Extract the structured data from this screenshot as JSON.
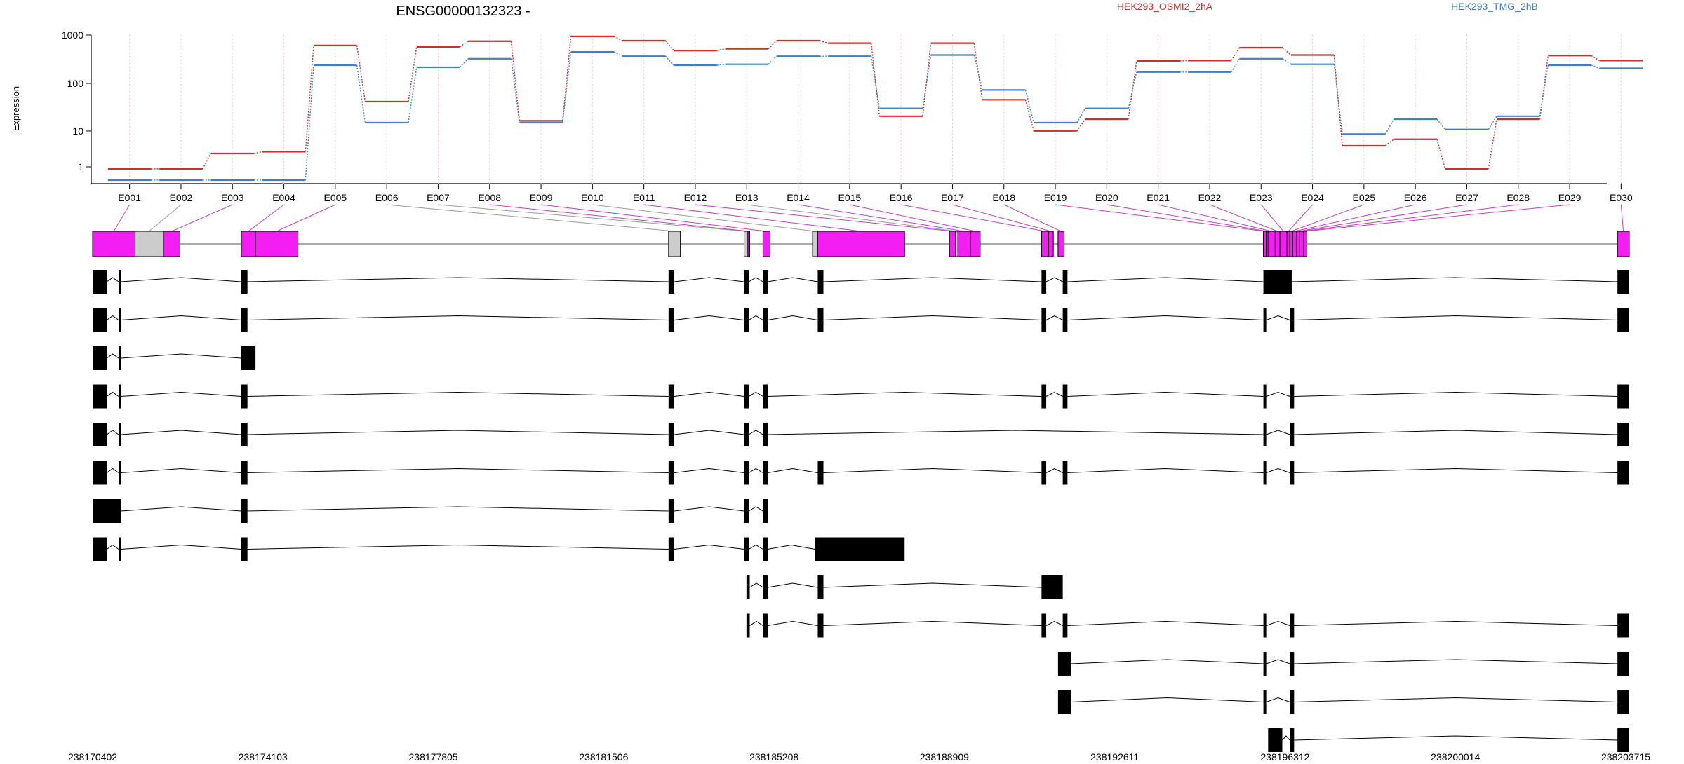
{
  "chart_data": {
    "type": "line",
    "title": "ENSG00000132323 -",
    "ylabel": "Expression",
    "xlabel": "",
    "yscale": "log",
    "ylim": [
      0.5,
      1000
    ],
    "yticks": [
      "1",
      "10",
      "100",
      "1000"
    ],
    "grid": "vertical dotted lines at each exon bin",
    "legend_placement": "top-right",
    "categories": [
      "E001",
      "E002",
      "E003",
      "E004",
      "E005",
      "E006",
      "E007",
      "E008",
      "E009",
      "E010",
      "E011",
      "E012",
      "E013",
      "E014",
      "E015",
      "E016",
      "E017",
      "E018",
      "E019",
      "E020",
      "E021",
      "E022",
      "E023",
      "E024",
      "E025",
      "E026",
      "E027",
      "E028",
      "E029",
      "E030"
    ],
    "series": [
      {
        "name": "HEK293_OSMI2_2hA",
        "color": "#d42a2a",
        "values": [
          0.9,
          0.9,
          2,
          2.2,
          560,
          30,
          520,
          700,
          11,
          900,
          720,
          430,
          470,
          720,
          630,
          14,
          630,
          33,
          6.5,
          12,
          250,
          255,
          500,
          340,
          3,
          4.2,
          0.9,
          12,
          330,
          255
        ]
      },
      {
        "name": "HEK293_TMG_2hB",
        "color": "#3c7fc4",
        "values": [
          0.5,
          0.5,
          0.5,
          0.5,
          200,
          10,
          180,
          280,
          10,
          400,
          320,
          200,
          210,
          320,
          320,
          21,
          340,
          55,
          10,
          21,
          140,
          140,
          280,
          210,
          5.5,
          12,
          7,
          14,
          200,
          170
        ]
      }
    ],
    "genomic_ticks": [
      "238170402",
      "238174103",
      "238177805",
      "238181506",
      "238185208",
      "238188909",
      "238192611",
      "238196312",
      "238200014",
      "238203715"
    ],
    "exon_color": "#f21ef2",
    "exon_nonsig_color": "#cccccc",
    "gene_model": {
      "exons": [
        {
          "id": "E001",
          "start": 0,
          "end": 0.9,
          "sig": true
        },
        {
          "id": "E002",
          "start": 0.9,
          "end": 1.5,
          "sig": false
        },
        {
          "id": "E003",
          "start": 1.5,
          "end": 1.85,
          "sig": true
        },
        {
          "id": "E004",
          "start": 3.15,
          "end": 3.45,
          "sig": true
        },
        {
          "id": "E005",
          "start": 3.45,
          "end": 4.35,
          "sig": true
        },
        {
          "id": "E006",
          "start": 12.2,
          "end": 12.45,
          "sig": false
        },
        {
          "id": "E007",
          "start": 13.8,
          "end": 13.88,
          "sig": false
        },
        {
          "id": "E008",
          "start": 13.88,
          "end": 13.92,
          "sig": true
        },
        {
          "id": "E009",
          "start": 14.2,
          "end": 14.35,
          "sig": true
        },
        {
          "id": "E010",
          "start": 15.25,
          "end": 15.36,
          "sig": false
        },
        {
          "id": "E011",
          "start": 15.36,
          "end": 17.2,
          "sig": true
        },
        {
          "id": "E012",
          "start": 18.15,
          "end": 18.28,
          "sig": true
        },
        {
          "id": "E013",
          "start": 18.28,
          "end": 18.33,
          "sig": false
        },
        {
          "id": "E014",
          "start": 18.33,
          "end": 18.6,
          "sig": true
        },
        {
          "id": "E015",
          "start": 18.6,
          "end": 18.8,
          "sig": true
        },
        {
          "id": "E016",
          "start": 20.1,
          "end": 20.25,
          "sig": true
        },
        {
          "id": "E017",
          "start": 20.25,
          "end": 20.35,
          "sig": true
        },
        {
          "id": "E018",
          "start": 20.45,
          "end": 20.58,
          "sig": true
        },
        {
          "id": "E019",
          "start": 24.8,
          "end": 24.86,
          "sig": true
        },
        {
          "id": "E020",
          "start": 24.86,
          "end": 24.9,
          "sig": true
        },
        {
          "id": "E021",
          "start": 24.9,
          "end": 25.05,
          "sig": true
        },
        {
          "id": "E022",
          "start": 25.05,
          "end": 25.15,
          "sig": true
        },
        {
          "id": "E023",
          "start": 25.15,
          "end": 25.3,
          "sig": true
        },
        {
          "id": "E024",
          "start": 25.3,
          "end": 25.36,
          "sig": true
        },
        {
          "id": "E025",
          "start": 25.36,
          "end": 25.42,
          "sig": true
        },
        {
          "id": "E026",
          "start": 25.42,
          "end": 25.5,
          "sig": true
        },
        {
          "id": "E027",
          "start": 25.5,
          "end": 25.56,
          "sig": true
        },
        {
          "id": "E028",
          "start": 25.56,
          "end": 25.65,
          "sig": true
        },
        {
          "id": "E029",
          "start": 25.65,
          "end": 25.72,
          "sig": true
        },
        {
          "id": "E030",
          "start": 32.3,
          "end": 32.55,
          "sig": true
        }
      ],
      "transcripts": [
        [
          [
            0,
            0.3
          ],
          [
            0.55,
            0.6
          ],
          [
            3.15,
            3.28
          ],
          [
            12.2,
            12.32
          ],
          [
            13.8,
            13.9
          ],
          [
            14.2,
            14.3
          ],
          [
            15.36,
            15.48
          ],
          [
            20.1,
            20.2
          ],
          [
            20.55,
            20.65
          ],
          [
            24.8,
            25.4
          ],
          [
            32.3,
            32.55
          ]
        ],
        [
          [
            0,
            0.3
          ],
          [
            0.55,
            0.6
          ],
          [
            3.15,
            3.28
          ],
          [
            12.2,
            12.32
          ],
          [
            13.8,
            13.9
          ],
          [
            14.2,
            14.3
          ],
          [
            15.36,
            15.48
          ],
          [
            20.1,
            20.2
          ],
          [
            20.55,
            20.65
          ],
          [
            24.8,
            24.86
          ],
          [
            25.36,
            25.45
          ],
          [
            32.3,
            32.55
          ]
        ],
        [
          [
            0,
            0.3
          ],
          [
            0.55,
            0.6
          ],
          [
            3.15,
            3.45
          ]
        ],
        [
          [
            0,
            0.3
          ],
          [
            0.55,
            0.6
          ],
          [
            3.15,
            3.28
          ],
          [
            12.2,
            12.32
          ],
          [
            13.8,
            13.9
          ],
          [
            14.2,
            14.3
          ],
          [
            20.1,
            20.2
          ],
          [
            20.55,
            20.65
          ],
          [
            24.8,
            24.86
          ],
          [
            25.36,
            25.45
          ],
          [
            32.3,
            32.55
          ]
        ],
        [
          [
            0,
            0.3
          ],
          [
            0.55,
            0.6
          ],
          [
            3.15,
            3.28
          ],
          [
            12.2,
            12.32
          ],
          [
            13.8,
            13.9
          ],
          [
            14.2,
            14.3
          ],
          [
            24.8,
            24.86
          ],
          [
            25.36,
            25.45
          ],
          [
            32.3,
            32.55
          ]
        ],
        [
          [
            0,
            0.3
          ],
          [
            0.55,
            0.6
          ],
          [
            3.15,
            3.28
          ],
          [
            12.2,
            12.32
          ],
          [
            13.8,
            13.9
          ],
          [
            14.2,
            14.3
          ],
          [
            15.36,
            15.48
          ],
          [
            20.1,
            20.2
          ],
          [
            20.55,
            20.65
          ],
          [
            24.8,
            24.86
          ],
          [
            25.36,
            25.45
          ],
          [
            32.3,
            32.55
          ]
        ],
        [
          [
            0,
            0.6
          ],
          [
            3.15,
            3.28
          ],
          [
            12.2,
            12.32
          ],
          [
            13.8,
            13.9
          ],
          [
            14.2,
            14.3
          ]
        ],
        [
          [
            0,
            0.3
          ],
          [
            0.55,
            0.6
          ],
          [
            3.15,
            3.28
          ],
          [
            12.2,
            12.32
          ],
          [
            13.8,
            13.9
          ],
          [
            14.2,
            14.3
          ],
          [
            15.3,
            17.2
          ]
        ],
        [
          [
            13.85,
            13.92
          ],
          [
            14.2,
            14.3
          ],
          [
            15.36,
            15.48
          ],
          [
            20.1,
            20.55
          ]
        ],
        [
          [
            13.85,
            13.92
          ],
          [
            14.2,
            14.3
          ],
          [
            15.36,
            15.48
          ],
          [
            20.1,
            20.2
          ],
          [
            20.55,
            20.65
          ],
          [
            24.8,
            24.86
          ],
          [
            25.36,
            25.45
          ],
          [
            32.3,
            32.55
          ]
        ],
        [
          [
            20.45,
            20.72
          ],
          [
            24.8,
            24.86
          ],
          [
            25.36,
            25.45
          ],
          [
            32.3,
            32.55
          ]
        ],
        [
          [
            20.45,
            20.72
          ],
          [
            24.8,
            24.86
          ],
          [
            25.36,
            25.45
          ],
          [
            32.3,
            32.55
          ]
        ],
        [
          [
            24.9,
            25.2
          ],
          [
            25.36,
            25.45
          ],
          [
            32.3,
            32.55
          ]
        ]
      ]
    }
  }
}
